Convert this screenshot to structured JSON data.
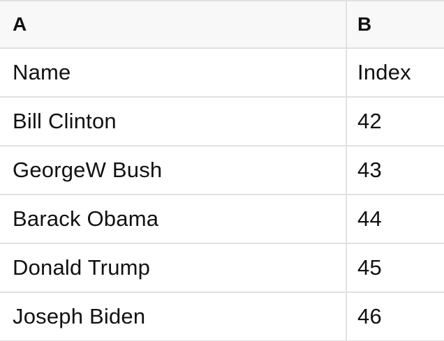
{
  "header": [
    "A",
    "B"
  ],
  "rows": [
    [
      "Name",
      "Index"
    ],
    [
      "Bill Clinton",
      "42"
    ],
    [
      "GeorgeW Bush",
      "43"
    ],
    [
      "Barack Obama",
      "44"
    ],
    [
      "Donald Trump",
      "45"
    ],
    [
      "Joseph Biden",
      "46"
    ]
  ],
  "colors": {
    "header_background": "#f8f8f8",
    "grid_border": "#e1e1e1",
    "text": "#111111",
    "row_background": "#ffffff"
  }
}
